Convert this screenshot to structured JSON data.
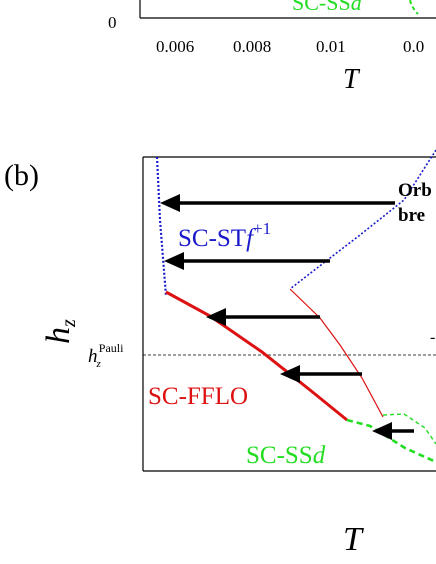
{
  "top_panel": {
    "y_tick_zero": "0",
    "x_ticks": [
      "0.006",
      "0.008",
      "0.01",
      "0.0"
    ],
    "x_label": "T",
    "partial_label": "SC-SSd",
    "partial_label_colors": {
      "label": "#22dd22"
    }
  },
  "bottom_panel": {
    "panel_label": "(b)",
    "y_label_main": "h",
    "y_label_sub": "z",
    "pauli_main": "h",
    "pauli_sub": "z",
    "pauli_sup": "Pauli",
    "x_label": "T",
    "region_stf_main": "SC-ST",
    "region_stf_italic": "f",
    "region_stf_sup": "+1",
    "region_fflo": "SC-FFLO",
    "region_ssd_main": "SC-SS",
    "region_ssd_italic": "d",
    "annotation_line1": "Orb",
    "annotation_line2": "bre",
    "annotation_right_partial": "-",
    "colors": {
      "stf": "#1a1acc",
      "fflo": "#dd1111",
      "ssd": "#22dd22",
      "arrow": "#000000"
    }
  }
}
